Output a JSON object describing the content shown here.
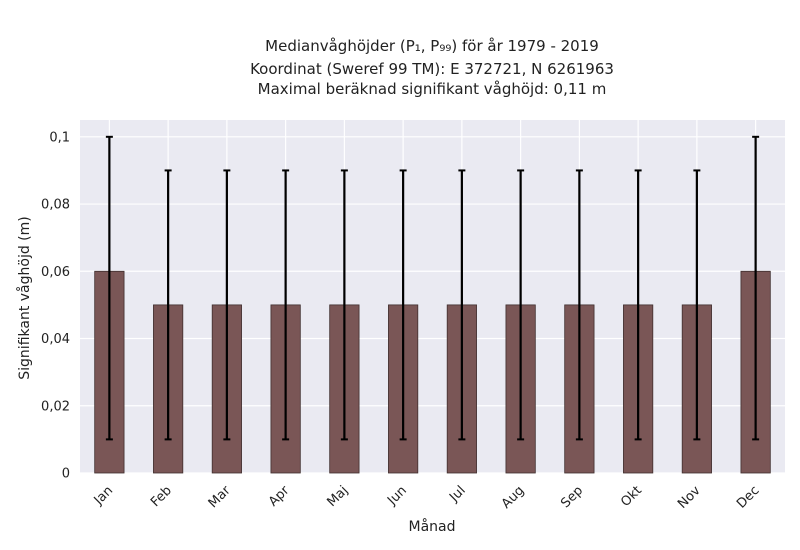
{
  "chart_data": {
    "type": "bar",
    "title_lines": [
      "Medianvåghöjder (P₁, P₉₉) för år 1979 - 2019",
      "Koordinat (Sweref 99 TM): E 372721, N 6261963",
      "Maximal beräknad signifikant våghöjd: 0,11 m"
    ],
    "xlabel": "Månad",
    "ylabel": "Signifikant våghöjd (m)",
    "categories": [
      "Jan",
      "Feb",
      "Mar",
      "Apr",
      "Maj",
      "Jun",
      "Jul",
      "Aug",
      "Sep",
      "Okt",
      "Nov",
      "Dec"
    ],
    "values": [
      0.06,
      0.05,
      0.05,
      0.05,
      0.05,
      0.05,
      0.05,
      0.05,
      0.05,
      0.05,
      0.05,
      0.06
    ],
    "error_low": [
      0.01,
      0.01,
      0.01,
      0.01,
      0.01,
      0.01,
      0.01,
      0.01,
      0.01,
      0.01,
      0.01,
      0.01
    ],
    "error_high": [
      0.1,
      0.09,
      0.09,
      0.09,
      0.09,
      0.09,
      0.09,
      0.09,
      0.09,
      0.09,
      0.09,
      0.1
    ],
    "ylim": [
      0,
      0.105
    ],
    "yticks": [
      0,
      0.02,
      0.04,
      0.06,
      0.08,
      0.1
    ],
    "ytick_labels": [
      "0",
      "0,02",
      "0,04",
      "0,06",
      "0,08",
      "0,1"
    ],
    "grid": true,
    "colors": {
      "bar": "#7a5656",
      "bar_edge": "#3f2e2e",
      "error": "#000000",
      "plot_bg": "#eaeaf2",
      "grid": "#ffffff"
    }
  }
}
